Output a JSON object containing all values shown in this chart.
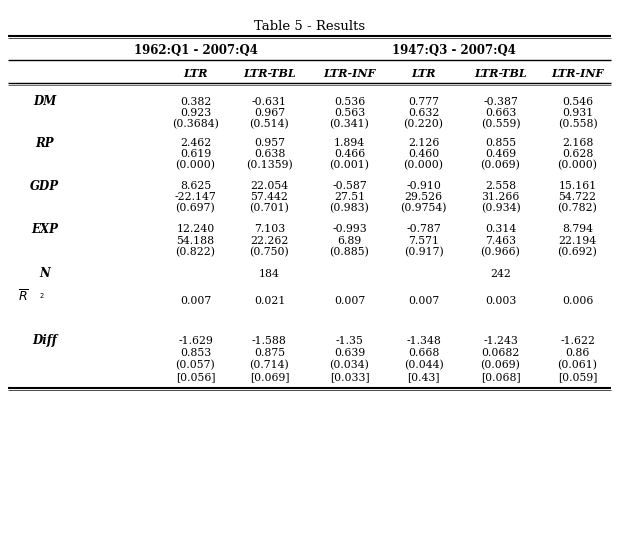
{
  "title": "Table 5 - Results",
  "col_groups": [
    {
      "label": "1962:Q1 - 2007:Q4",
      "cols": [
        "LTR",
        "LTR-TBL",
        "LTR-INF"
      ]
    },
    {
      "label": "1947:Q3 - 2007:Q4",
      "cols": [
        "LTR",
        "LTR-TBL",
        "LTR-INF"
      ]
    }
  ],
  "row_labels": [
    "DM",
    "RP",
    "GDP",
    "EXP",
    "N",
    "R2",
    "Diff"
  ],
  "rows": {
    "DM": [
      [
        "0.382",
        "-0.631",
        "0.536",
        "0.777",
        "-0.387",
        "0.546"
      ],
      [
        "0.923",
        "0.967",
        "0.563",
        "0.632",
        "0.663",
        "0.931"
      ],
      [
        "(0.3684)",
        "(0.514)",
        "(0.341)",
        "(0.220)",
        "(0.559)",
        "(0.558)"
      ]
    ],
    "RP": [
      [
        "2.462",
        "0.957",
        "1.894",
        "2.126",
        "0.855",
        "2.168"
      ],
      [
        "0.619",
        "0.638",
        "0.466",
        "0.460",
        "0.469",
        "0.628"
      ],
      [
        "(0.000)",
        "(0.1359)",
        "(0.001)",
        "(0.000)",
        "(0.069)",
        "(0.000)"
      ]
    ],
    "GDP": [
      [
        "8.625",
        "22.054",
        "-0.587",
        "-0.910",
        "2.558",
        "15.161"
      ],
      [
        "-22.147",
        "57.442",
        "27.51",
        "29.526",
        "31.266",
        "54.722"
      ],
      [
        "(0.697)",
        "(0.701)",
        "(0.983)",
        "(0.9754)",
        "(0.934)",
        "(0.782)"
      ]
    ],
    "EXP": [
      [
        "12.240",
        "7.103",
        "-0.993",
        "-0.787",
        "0.314",
        "8.794"
      ],
      [
        "54.188",
        "22.262",
        "6.89",
        "7.571",
        "7.463",
        "22.194"
      ],
      [
        "(0.822)",
        "(0.750)",
        "(0.885)",
        "(0.917)",
        "(0.966)",
        "(0.692)"
      ]
    ],
    "N": [
      [
        "",
        "184",
        "",
        "",
        "242",
        ""
      ]
    ],
    "R2": [
      [
        "0.007",
        "0.021",
        "0.007",
        "0.007",
        "0.003",
        "0.006"
      ]
    ],
    "Diff": [
      [
        "-1.629",
        "-1.588",
        "-1.35",
        "-1.348",
        "-1.243",
        "-1.622"
      ],
      [
        "0.853",
        "0.875",
        "0.639",
        "0.668",
        "0.0682",
        "0.86"
      ],
      [
        "(0.057)",
        "(0.714)",
        "(0.034)",
        "(0.044)",
        "(0.069)",
        "(0.061)"
      ],
      [
        "[0.056]",
        "[0.069]",
        "[0.033]",
        "[0.43]",
        "[0.068]",
        "[0.059]"
      ]
    ]
  }
}
